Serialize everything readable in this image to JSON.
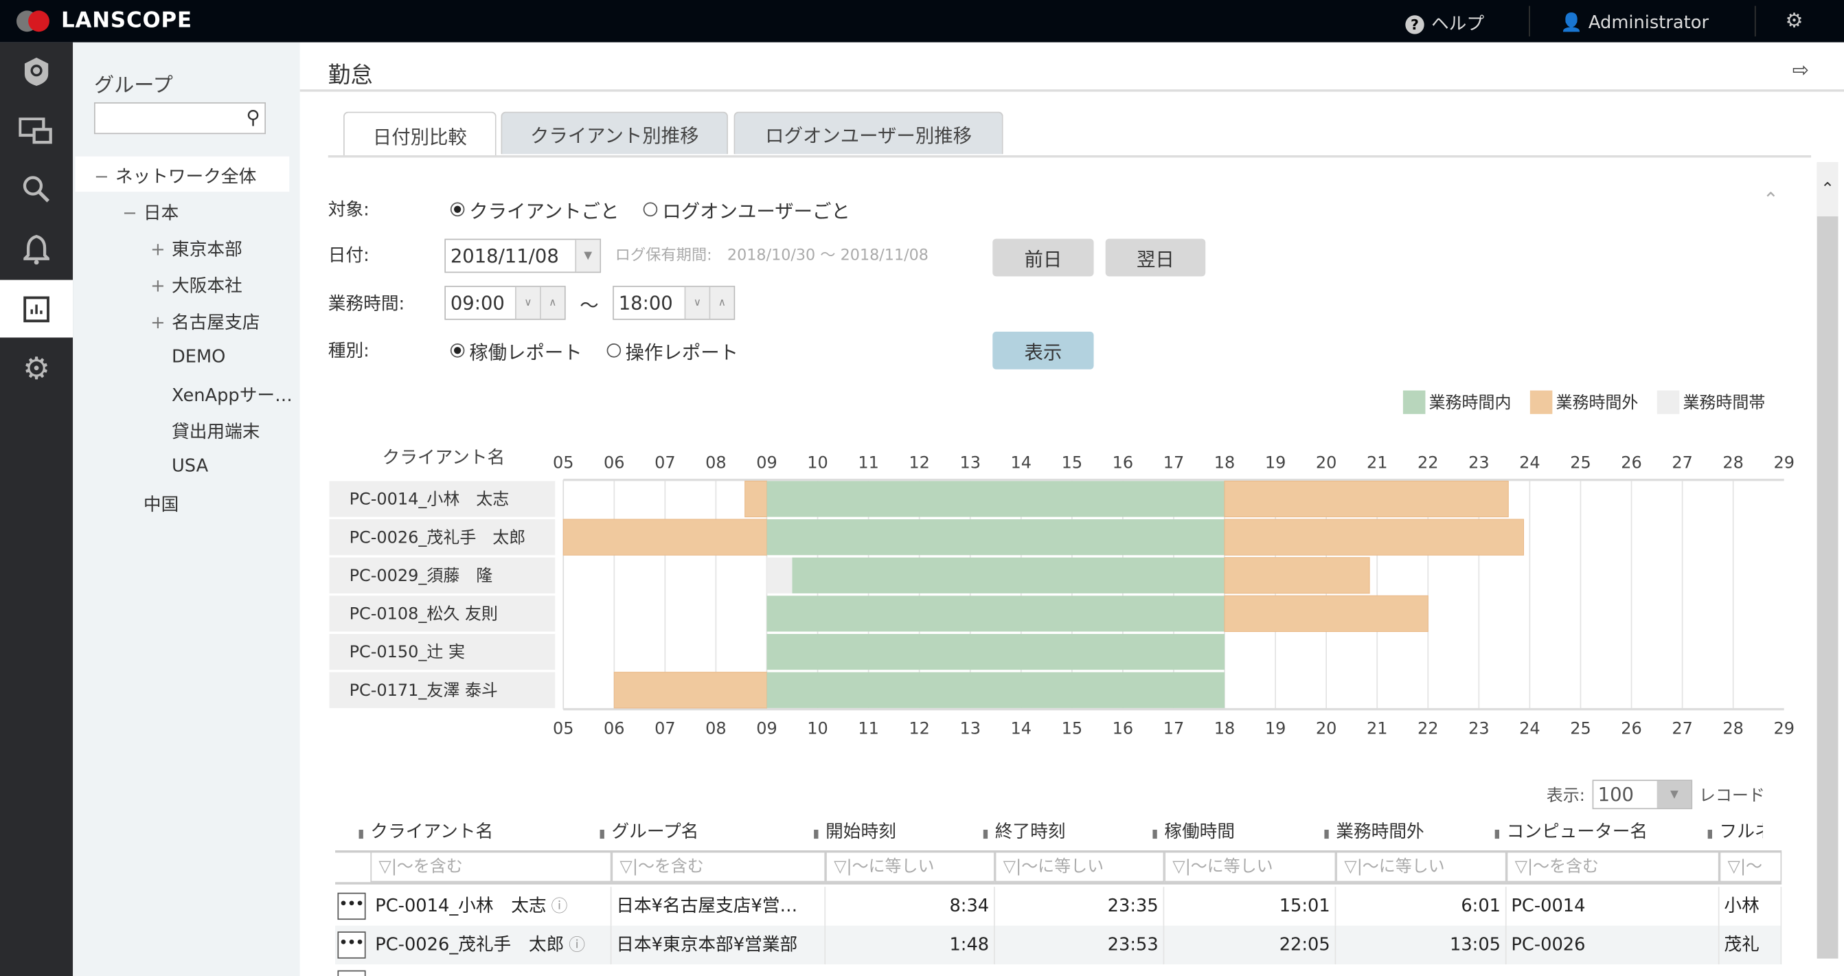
{
  "header": {
    "logo": "LANSCOPE",
    "help": "ヘルプ",
    "user": "Administrator"
  },
  "rail": {
    "items": [
      "shield-icon",
      "devices-icon",
      "search-icon",
      "bell-icon",
      "report-icon",
      "gear-icon"
    ],
    "active": "report-icon"
  },
  "group_panel": {
    "title": "グループ",
    "search_placeholder": "",
    "tree": [
      {
        "label": "ネットワーク全体",
        "toggle": "−",
        "level": 0
      },
      {
        "label": "日本",
        "toggle": "−",
        "level": 1
      },
      {
        "label": "東京本部",
        "toggle": "+",
        "level": 2
      },
      {
        "label": "大阪本社",
        "toggle": "+",
        "level": 2
      },
      {
        "label": "名古屋支店",
        "toggle": "+",
        "level": 2
      },
      {
        "label": "DEMO",
        "toggle": "",
        "level": 2
      },
      {
        "label": "XenAppサー…",
        "toggle": "",
        "level": 2
      },
      {
        "label": "貸出用端末",
        "toggle": "",
        "level": 2
      },
      {
        "label": "USA",
        "toggle": "",
        "level": 2
      },
      {
        "label": "中国",
        "toggle": "",
        "level": 1
      }
    ]
  },
  "main": {
    "title": "勤怠",
    "tabs": [
      {
        "label": "日付別比較",
        "active": true
      },
      {
        "label": "クライアント別推移"
      },
      {
        "label": "ログオンユーザー別推移"
      }
    ],
    "form": {
      "target_label": "対象:",
      "target_options": [
        "クライアントごと",
        "ログオンユーザーごと"
      ],
      "date_label": "日付:",
      "date_value": "2018/11/08",
      "log_period": "ログ保有期間:　2018/10/30 ～ 2018/11/08",
      "prev_day": "前日",
      "next_day": "翌日",
      "hours_label": "業務時間:",
      "start_time": "09:00",
      "tilde": "～",
      "end_time": "18:00",
      "type_label": "種別:",
      "type_options": [
        "稼働レポート",
        "操作レポート"
      ],
      "show_button": "表示"
    },
    "legend": [
      {
        "label": "業務時間内",
        "color": "#b8d6bc"
      },
      {
        "label": "業務時間外",
        "color": "#f0c99e"
      },
      {
        "label": "業務時間帯",
        "color": "#eeeeee"
      }
    ]
  },
  "chart_data": {
    "type": "bar",
    "subtype": "horizontal-timeline",
    "category_header": "クライアント名",
    "categories": [
      "PC-0014_小林　太志",
      "PC-0026_茂礼手　太郎",
      "PC-0029_須藤　隆",
      "PC-0108_松久 友則",
      "PC-0150_辻 実",
      "PC-0171_友澤 泰斗"
    ],
    "x_ticks": [
      "05",
      "06",
      "07",
      "08",
      "09",
      "10",
      "11",
      "12",
      "13",
      "14",
      "15",
      "16",
      "17",
      "18",
      "19",
      "20",
      "21",
      "22",
      "23",
      "24",
      "25",
      "26",
      "27",
      "28",
      "29"
    ],
    "xlim": [
      5,
      29
    ],
    "grid": true,
    "segments": [
      [
        [
          8.57,
          9,
          "outside"
        ],
        [
          9,
          18,
          "inside"
        ],
        [
          18,
          23.58,
          "outside"
        ]
      ],
      [
        [
          5,
          9,
          "outside"
        ],
        [
          9,
          18,
          "inside"
        ],
        [
          18,
          23.88,
          "outside"
        ]
      ],
      [
        [
          9,
          9.5,
          "idle"
        ],
        [
          9.5,
          18,
          "inside"
        ],
        [
          18,
          20.85,
          "outside"
        ]
      ],
      [
        [
          9,
          18,
          "inside"
        ],
        [
          18,
          22,
          "outside"
        ]
      ],
      [
        [
          9,
          18,
          "inside"
        ]
      ],
      [
        [
          6,
          9,
          "outside"
        ],
        [
          9,
          18,
          "inside"
        ]
      ]
    ],
    "colors": {
      "inside": "#b8d6bc",
      "outside": "#f0c99e",
      "idle": "#eeeeee"
    }
  },
  "table": {
    "display_label": "表示:",
    "page_size": "100",
    "records_label": "レコード",
    "columns": [
      "クライアント名",
      "グループ名",
      "開始時刻",
      "終了時刻",
      "稼働時間",
      "業務時間外",
      "コンピューター名",
      "フルネ"
    ],
    "filters": [
      "～を含む",
      "～を含む",
      "～に等しい",
      "～に等しい",
      "～に等しい",
      "～に等しい",
      "～を含む",
      "～"
    ],
    "rows": [
      [
        "PC-0014_小林　太志",
        "日本¥名古屋支店¥営…",
        "8:34",
        "23:35",
        "15:01",
        "6:01",
        "PC-0014",
        "小林"
      ],
      [
        "PC-0026_茂礼手　太郎",
        "日本¥東京本部¥営業部",
        "1:48",
        "23:53",
        "22:05",
        "13:05",
        "PC-0026",
        "茂礼"
      ]
    ]
  }
}
